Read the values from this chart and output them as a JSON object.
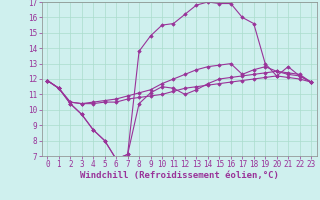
{
  "xlabel": "Windchill (Refroidissement éolien,°C)",
  "background_color": "#cff0ee",
  "grid_color": "#aaddcc",
  "line_color": "#993399",
  "xlim": [
    -0.5,
    23.5
  ],
  "ylim": [
    7,
    17
  ],
  "xticks": [
    0,
    1,
    2,
    3,
    4,
    5,
    6,
    7,
    8,
    9,
    10,
    11,
    12,
    13,
    14,
    15,
    16,
    17,
    18,
    19,
    20,
    21,
    22,
    23
  ],
  "yticks": [
    7,
    8,
    9,
    10,
    11,
    12,
    13,
    14,
    15,
    16,
    17
  ],
  "line1_x": [
    0,
    1,
    2,
    3,
    4,
    5,
    6,
    7,
    8,
    9,
    10,
    11,
    12,
    13,
    14,
    15,
    16,
    17,
    18,
    19,
    20,
    21,
    22,
    23
  ],
  "line1_y": [
    11.9,
    11.4,
    10.4,
    9.7,
    8.7,
    8.0,
    6.8,
    7.1,
    10.4,
    11.1,
    11.5,
    11.4,
    11.0,
    11.3,
    11.7,
    12.0,
    12.1,
    12.2,
    12.3,
    12.4,
    12.5,
    12.3,
    12.2,
    11.8
  ],
  "line2_x": [
    0,
    1,
    2,
    3,
    4,
    5,
    6,
    7,
    8,
    9,
    10,
    11,
    12,
    13,
    14,
    15,
    16,
    17,
    18,
    19,
    20,
    21,
    22,
    23
  ],
  "line2_y": [
    11.9,
    11.4,
    10.4,
    9.7,
    8.7,
    8.0,
    6.8,
    7.1,
    13.8,
    14.8,
    15.5,
    15.6,
    16.2,
    16.8,
    17.0,
    16.9,
    16.9,
    16.0,
    15.6,
    13.0,
    12.2,
    12.8,
    12.2,
    11.8
  ],
  "line3_x": [
    0,
    1,
    2,
    3,
    4,
    5,
    6,
    7,
    8,
    9,
    10,
    11,
    12,
    13,
    14,
    15,
    16,
    17,
    18,
    19,
    20,
    21,
    22,
    23
  ],
  "line3_y": [
    11.9,
    11.4,
    10.5,
    10.4,
    10.4,
    10.5,
    10.5,
    10.7,
    10.8,
    10.9,
    11.0,
    11.2,
    11.4,
    11.5,
    11.6,
    11.7,
    11.8,
    11.9,
    12.0,
    12.1,
    12.2,
    12.1,
    12.0,
    11.8
  ],
  "line4_x": [
    0,
    1,
    2,
    3,
    4,
    5,
    6,
    7,
    8,
    9,
    10,
    11,
    12,
    13,
    14,
    15,
    16,
    17,
    18,
    19,
    20,
    21,
    22,
    23
  ],
  "line4_y": [
    11.9,
    11.4,
    10.5,
    10.4,
    10.5,
    10.6,
    10.7,
    10.9,
    11.1,
    11.3,
    11.7,
    12.0,
    12.3,
    12.6,
    12.8,
    12.9,
    13.0,
    12.3,
    12.6,
    12.8,
    12.5,
    12.4,
    12.3,
    11.8
  ],
  "xlabel_fontsize": 6.5,
  "tick_fontsize": 5.5
}
